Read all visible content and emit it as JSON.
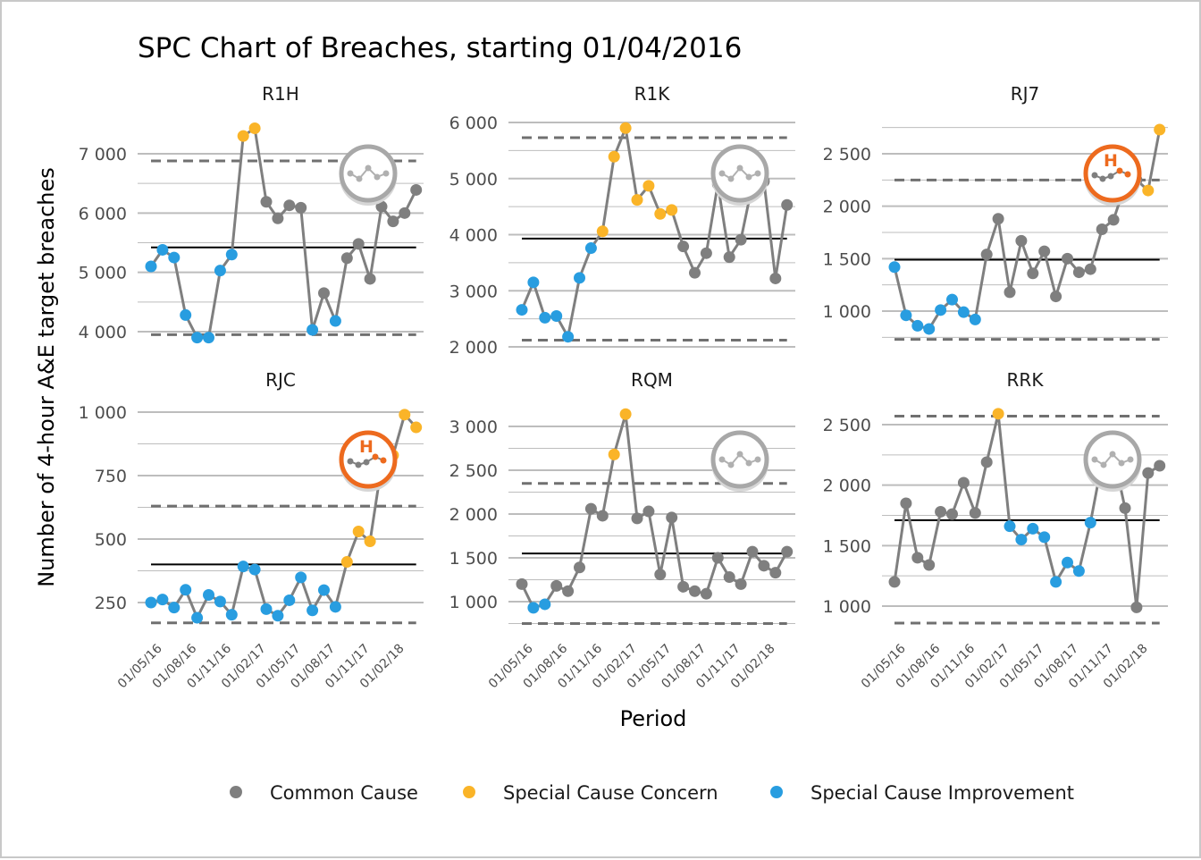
{
  "title": "SPC Chart of Breaches, starting 01/04/2016",
  "y_axis_label": "Number of 4-hour A&E target breaches",
  "x_axis_label": "Period",
  "colors": {
    "common_cause": "#7f7f7f",
    "special_cause_concern": "#fab428",
    "special_cause_improvement": "#289de0",
    "line": "#7f7f7f",
    "mean": "#000000",
    "limits": "#707070",
    "grid": "#bdbdbd",
    "variation_high_concern": "#ed6a1e"
  },
  "legend": [
    {
      "key": "common",
      "label": "Common Cause",
      "color": "#7f7f7f"
    },
    {
      "key": "concern",
      "label": "Special Cause Concern",
      "color": "#fab428"
    },
    {
      "key": "improvement",
      "label": "Special Cause Improvement",
      "color": "#289de0"
    }
  ],
  "x_tick_labels": [
    "01/05/16",
    "01/08/16",
    "01/11/16",
    "01/02/17",
    "01/05/17",
    "01/08/17",
    "01/11/17",
    "01/02/18"
  ],
  "chart_data": [
    {
      "type": "line",
      "title": "R1H",
      "x_start": "01/04/2016",
      "x_interval": "month",
      "n_points": 24,
      "ylim": [
        3700,
        7500
      ],
      "y_ticks": [
        4000,
        5000,
        6000,
        7000
      ],
      "y_tick_labels": [
        "4 000",
        "5 000",
        "6 000",
        "7 000"
      ],
      "mean": 5420,
      "ucl": 6880,
      "lcl": 3950,
      "values": [
        5100,
        5380,
        5250,
        4280,
        3900,
        3900,
        5030,
        5300,
        7300,
        7430,
        6190,
        5910,
        6130,
        6090,
        4030,
        4650,
        4180,
        5240,
        5480,
        4890,
        6110,
        5860,
        6000,
        6390
      ],
      "status": [
        "improvement",
        "improvement",
        "improvement",
        "improvement",
        "improvement",
        "improvement",
        "improvement",
        "improvement",
        "concern",
        "concern",
        "common",
        "common",
        "common",
        "common",
        "improvement",
        "common",
        "improvement",
        "common",
        "common",
        "common",
        "common",
        "common",
        "common",
        "common"
      ],
      "variation_icon": "common-cause",
      "variation_icon_letter": ""
    },
    {
      "type": "line",
      "title": "R1K",
      "x_start": "01/04/2016",
      "x_interval": "month",
      "n_points": 24,
      "ylim": [
        1950,
        6050
      ],
      "y_ticks": [
        2000,
        3000,
        4000,
        5000,
        6000
      ],
      "y_tick_labels": [
        "2 000",
        "3 000",
        "4 000",
        "5 000",
        "6 000"
      ],
      "mean": 3930,
      "ucl": 5730,
      "lcl": 2120,
      "values": [
        2660,
        3150,
        2520,
        2550,
        2180,
        3230,
        3760,
        4060,
        5390,
        5900,
        4620,
        4870,
        4370,
        4440,
        3790,
        3320,
        3670,
        4900,
        3600,
        3910,
        4900,
        4950,
        3220,
        4530
      ],
      "status": [
        "improvement",
        "improvement",
        "improvement",
        "improvement",
        "improvement",
        "improvement",
        "improvement",
        "concern",
        "concern",
        "concern",
        "concern",
        "concern",
        "concern",
        "concern",
        "common",
        "common",
        "common",
        "common",
        "common",
        "common",
        "common",
        "common",
        "common",
        "common"
      ],
      "variation_icon": "common-cause",
      "variation_icon_letter": ""
    },
    {
      "type": "line",
      "title": "RJ7",
      "x_start": "01/04/2016",
      "x_interval": "month",
      "n_points": 24,
      "ylim": [
        700,
        2800
      ],
      "y_ticks": [
        1000,
        1500,
        2000,
        2500
      ],
      "y_tick_labels": [
        "1 000",
        "1 500",
        "2 000",
        "2 500"
      ],
      "mean": 1490,
      "ucl": 2250,
      "lcl": 730,
      "values": [
        1420,
        960,
        860,
        830,
        1010,
        1110,
        990,
        920,
        1540,
        1880,
        1180,
        1670,
        1360,
        1570,
        1140,
        1500,
        1370,
        1400,
        1780,
        1870,
        2200,
        2250,
        2150,
        2730
      ],
      "status": [
        "improvement",
        "improvement",
        "improvement",
        "improvement",
        "improvement",
        "improvement",
        "improvement",
        "improvement",
        "common",
        "common",
        "common",
        "common",
        "common",
        "common",
        "common",
        "common",
        "common",
        "common",
        "common",
        "common",
        "common",
        "common",
        "concern",
        "concern"
      ],
      "variation_icon": "special-cause-concern-high",
      "variation_icon_letter": "H"
    },
    {
      "type": "line",
      "title": "RJC",
      "x_start": "01/04/2016",
      "x_interval": "month",
      "n_points": 24,
      "ylim": [
        130,
        1050
      ],
      "y_ticks": [
        250,
        500,
        750,
        1000
      ],
      "y_tick_labels": [
        "250",
        "500",
        "750",
        "1 000"
      ],
      "mean": 400,
      "ucl": 630,
      "lcl": 170,
      "values": [
        250,
        262,
        230,
        300,
        190,
        280,
        254,
        202,
        392,
        380,
        224,
        198,
        259,
        349,
        219,
        299,
        233,
        410,
        530,
        491,
        790,
        830,
        990,
        940
      ],
      "status": [
        "improvement",
        "improvement",
        "improvement",
        "improvement",
        "improvement",
        "improvement",
        "improvement",
        "improvement",
        "improvement",
        "improvement",
        "improvement",
        "improvement",
        "improvement",
        "improvement",
        "improvement",
        "improvement",
        "improvement",
        "concern",
        "concern",
        "concern",
        "concern",
        "concern",
        "concern",
        "concern"
      ],
      "variation_icon": "special-cause-concern-high",
      "variation_icon_letter": "H"
    },
    {
      "type": "line",
      "title": "RQM",
      "x_start": "01/04/2016",
      "x_interval": "month",
      "n_points": 24,
      "ylim": [
        700,
        3200
      ],
      "y_ticks": [
        1000,
        1500,
        2000,
        2500,
        3000
      ],
      "y_tick_labels": [
        "1 000",
        "1 500",
        "2 000",
        "2 500",
        "3 000"
      ],
      "mean": 1550,
      "ucl": 2350,
      "lcl": 750,
      "values": [
        1200,
        930,
        970,
        1180,
        1120,
        1390,
        2060,
        1980,
        2680,
        3140,
        1950,
        2030,
        1310,
        1960,
        1170,
        1120,
        1090,
        1500,
        1280,
        1200,
        1570,
        1410,
        1330,
        1570
      ],
      "status": [
        "common",
        "improvement",
        "improvement",
        "common",
        "common",
        "common",
        "common",
        "common",
        "concern",
        "concern",
        "common",
        "common",
        "common",
        "common",
        "common",
        "common",
        "common",
        "common",
        "common",
        "common",
        "common",
        "common",
        "common",
        "common"
      ],
      "variation_icon": "common-cause",
      "variation_icon_letter": ""
    },
    {
      "type": "line",
      "title": "RRK",
      "x_start": "01/04/2016",
      "x_interval": "month",
      "n_points": 24,
      "ylim": [
        800,
        2700
      ],
      "y_ticks": [
        1000,
        1500,
        2000,
        2500
      ],
      "y_tick_labels": [
        "1 000",
        "1 500",
        "2 000",
        "2 500"
      ],
      "mean": 1710,
      "ucl": 2570,
      "lcl": 860,
      "values": [
        1200,
        1850,
        1400,
        1340,
        1780,
        1760,
        2020,
        1770,
        2190,
        2590,
        1660,
        1550,
        1640,
        1570,
        1200,
        1360,
        1290,
        1690,
        2190,
        2250,
        1810,
        990,
        2100,
        2160
      ],
      "status": [
        "common",
        "common",
        "common",
        "common",
        "common",
        "common",
        "common",
        "common",
        "common",
        "concern",
        "improvement",
        "improvement",
        "improvement",
        "improvement",
        "improvement",
        "improvement",
        "improvement",
        "improvement",
        "common",
        "common",
        "common",
        "common",
        "common",
        "common"
      ],
      "variation_icon": "common-cause",
      "variation_icon_letter": ""
    }
  ]
}
